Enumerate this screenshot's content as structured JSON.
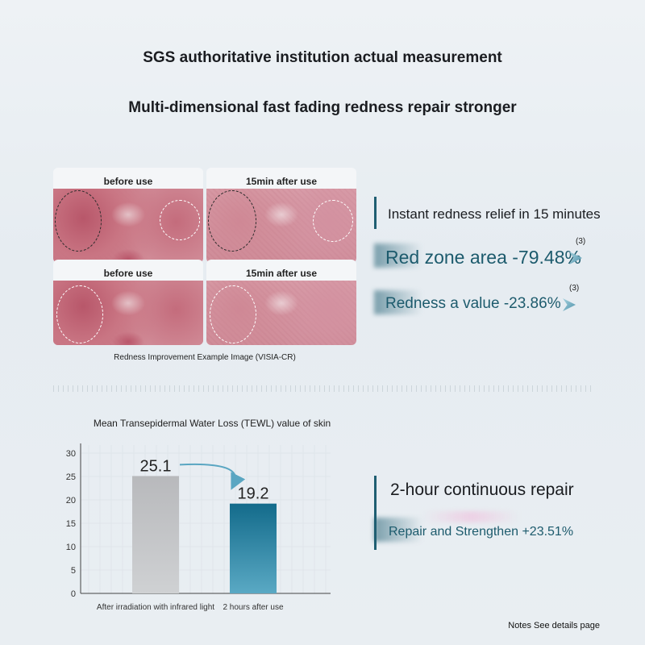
{
  "header": {
    "title": "SGS authoritative institution actual measurement",
    "subtitle": "Multi-dimensional fast fading redness repair stronger"
  },
  "comparison": {
    "labels": [
      "before use",
      "15min after use",
      "before use",
      "15min after use"
    ],
    "caption": "Redness Improvement Example Image (VISIA-CR)"
  },
  "redness_panel": {
    "heading": "Instant redness relief in 15 minutes",
    "stats": [
      {
        "text": "Red zone area -79.48%",
        "note": "(3)"
      },
      {
        "text": "Redness a value -23.86%",
        "note": "(3)"
      }
    ]
  },
  "repair_panel": {
    "heading": "2-hour continuous repair",
    "stat": "Repair and Strengthen +23.51%"
  },
  "chart_data": {
    "type": "bar",
    "title": "Mean Transepidermal Water Loss (TEWL) value of skin",
    "categories": [
      "After irradiation with infrared light",
      "2 hours after use"
    ],
    "values": [
      25.1,
      19.2
    ],
    "value_labels": [
      "25.1",
      "19.2"
    ],
    "colors": [
      "#b4b6b9",
      "#146f8f"
    ],
    "yticks": [
      "0",
      "5",
      "10",
      "15",
      "20",
      "25",
      "30"
    ],
    "ylim": [
      0,
      30
    ],
    "grid": true
  },
  "footer": {
    "notes": "Notes See details page"
  }
}
